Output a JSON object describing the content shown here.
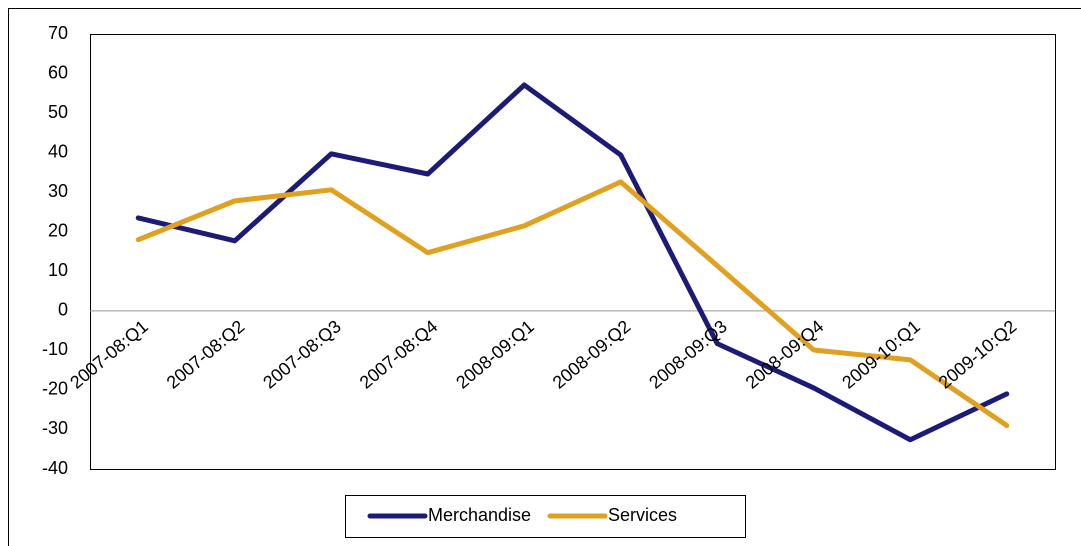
{
  "chart_data": {
    "type": "line",
    "categories": [
      "2007-08:Q1",
      "2007-08:Q2",
      "2007-08:Q3",
      "2007-08:Q4",
      "2008-09:Q1",
      "2008-09:Q2",
      "2008-09:Q3",
      "2008-09:Q4",
      "2009-10:Q1",
      "2009-10:Q2"
    ],
    "series": [
      {
        "name": "Merchandise",
        "color": "#1c1c78",
        "values": [
          23.5,
          17.7,
          39.7,
          34.6,
          57.1,
          39.4,
          -8.3,
          -19.5,
          -32.6,
          -21
        ]
      },
      {
        "name": "Services",
        "color": "#e0a020",
        "values": [
          18,
          27.8,
          30.6,
          14.7,
          21.5,
          32.6,
          11.4,
          -9.9,
          -12.4,
          -29
        ]
      }
    ],
    "ylim": [
      -40,
      70
    ],
    "yticks": [
      -40,
      -30,
      -20,
      -10,
      0,
      10,
      20,
      30,
      40,
      50,
      60,
      70
    ],
    "legend": "bottom"
  }
}
